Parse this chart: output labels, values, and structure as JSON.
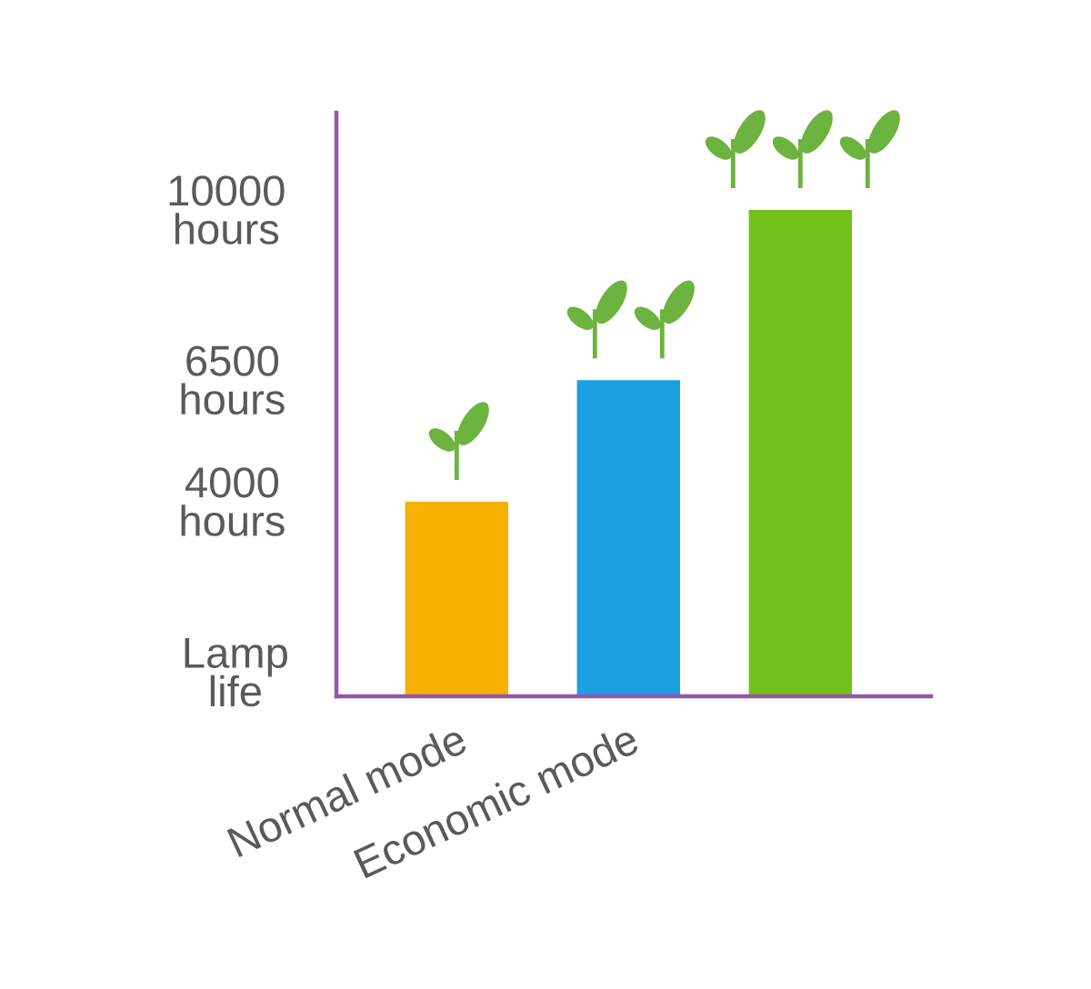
{
  "chart_data": {
    "type": "bar",
    "categories": [
      "Normal mode",
      "Economic mode",
      null
    ],
    "values": [
      4000,
      6500,
      10000
    ],
    "colors": [
      "#f6b100",
      "#1a9fe0",
      "#72c01c"
    ],
    "ylabel": "Lamp life",
    "ylim": [
      0,
      12000
    ],
    "yticks": [
      {
        "value": 4000,
        "label": "4000 hours"
      },
      {
        "value": 6500,
        "label": "6500 hours"
      },
      {
        "value": 10000,
        "label": "10000 hours"
      }
    ]
  }
}
